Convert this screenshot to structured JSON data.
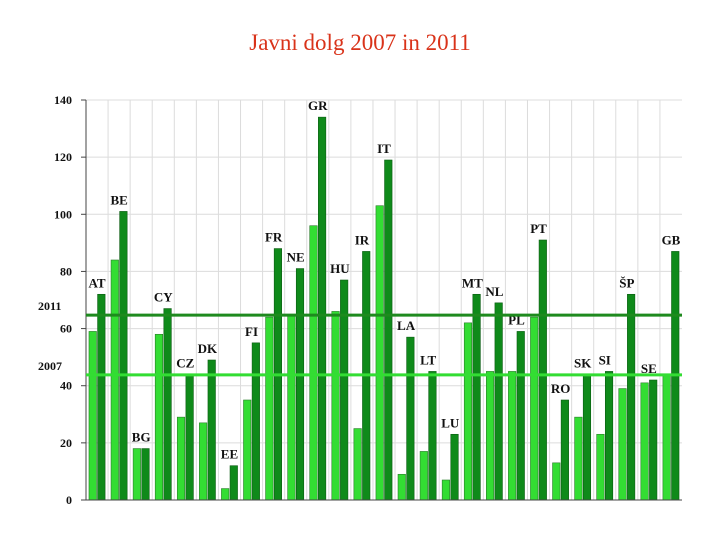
{
  "chart_data": {
    "type": "bar",
    "title": "Javni dolg 2007 in 2011",
    "xlabel": "",
    "ylabel": "",
    "ylim": [
      0,
      140
    ],
    "yticks": [
      "0",
      "20",
      "40",
      "60",
      "80",
      "100",
      "120",
      "140"
    ],
    "grid": true,
    "categories": [
      "AT",
      "BE",
      "BG",
      "CY",
      "CZ",
      "DK",
      "EE",
      "FI",
      "FR",
      "NE",
      "GR",
      "HU",
      "IR",
      "IT",
      "LA",
      "LT",
      "LU",
      "MT",
      "NL",
      "PL",
      "PT",
      "RO",
      "SK",
      "SI",
      "ŠP",
      "SE",
      "GB"
    ],
    "series": [
      {
        "name": "2007",
        "color": "#33dd33",
        "values": [
          59,
          84,
          18,
          58,
          29,
          27,
          4,
          35,
          64,
          65,
          96,
          66,
          25,
          103,
          9,
          17,
          7,
          62,
          45,
          45,
          64,
          13,
          29,
          23,
          39,
          41,
          44
        ]
      },
      {
        "name": "2011",
        "color": "#0f8a1a",
        "values": [
          72,
          101,
          18,
          67,
          44,
          49,
          12,
          55,
          88,
          81,
          134,
          77,
          87,
          119,
          57,
          45,
          23,
          72,
          69,
          59,
          91,
          35,
          44,
          45,
          72,
          42,
          87
        ]
      }
    ],
    "reference_lines": [
      {
        "label": "2011",
        "value": 64.7,
        "color": "#1e8a1e"
      },
      {
        "label": "2007",
        "value": 43.8,
        "color": "#33dd33"
      }
    ]
  }
}
